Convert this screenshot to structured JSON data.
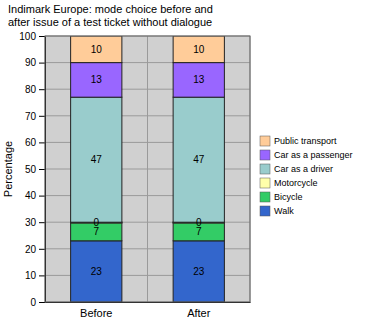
{
  "chart_data": {
    "type": "bar",
    "stacked": true,
    "data_labels": true,
    "grid": true,
    "legend": "right",
    "title": "Indimark Europe: mode choice before and\nafter issue of a test ticket without dialogue",
    "y_label": "Percentage",
    "categories": [
      "Before",
      "After"
    ],
    "series": [
      {
        "name": "Walk",
        "color": "#3366cc",
        "values": [
          23,
          23
        ]
      },
      {
        "name": "Bicycle",
        "color": "#33cc66",
        "values": [
          7,
          7
        ]
      },
      {
        "name": "Motorcycle",
        "color": "#ffffaa",
        "values": [
          0,
          0
        ]
      },
      {
        "name": "Car as a driver",
        "color": "#99cccc",
        "values": [
          47,
          47
        ]
      },
      {
        "name": "Car as a passenger",
        "color": "#9966ff",
        "values": [
          13,
          13
        ]
      },
      {
        "name": "Public transport",
        "color": "#ffcc99",
        "values": [
          10,
          10
        ]
      }
    ],
    "ylim": [
      0,
      100
    ],
    "yticks": [
      0,
      10,
      20,
      30,
      40,
      50,
      60,
      70,
      80,
      90,
      100
    ]
  }
}
